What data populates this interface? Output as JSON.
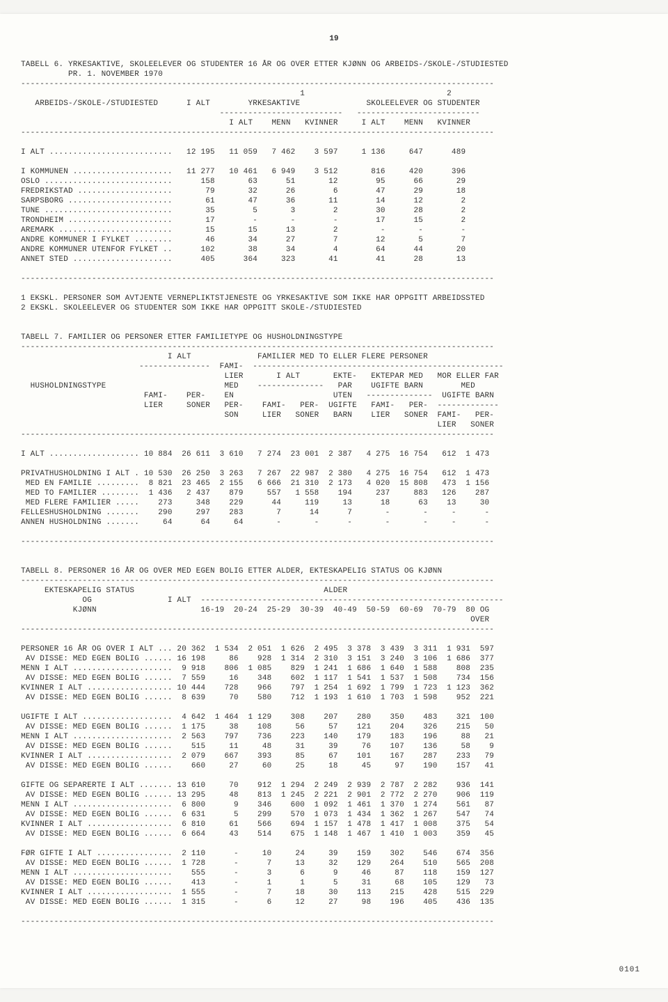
{
  "page_number": "19",
  "footer_code": "0101",
  "font": {
    "family": "Courier New, monospace",
    "size_pt": 8,
    "color": "#333333"
  },
  "colors": {
    "background": "#fdfdfa",
    "page_shadow": "#e0e0dc",
    "text": "#333333"
  },
  "table6": {
    "title": "TABELL 6. YRKESAKTIVE, SKOLEELEVER OG STUDENTER 16 ÅR OG OVER ETTER KJØNN OG ARBEIDS-/SKOLE-/STUDIESTED\n          PR. 1. NOVEMBER 1970",
    "group_headers": [
      "ARBEIDS-/SKOLE-/STUDIESTED",
      "I ALT",
      "YRKESAKTIVE",
      "SKOLEELEVER OG STUDENTER"
    ],
    "sup": [
      "",
      "",
      "1",
      "2"
    ],
    "sub_headers": [
      "",
      "",
      "I ALT",
      "MENN",
      "KVINNER",
      "I ALT",
      "MENN",
      "KVINNER"
    ],
    "rows": [
      [
        "I ALT ..........................",
        "12 195",
        "11 059",
        "7 462",
        "3 597",
        "1 136",
        "647",
        "489"
      ],
      [
        " ",
        "",
        "",
        "",
        "",
        "",
        "",
        ""
      ],
      [
        "I KOMMUNEN .....................",
        "11 277",
        "10 461",
        "6 949",
        "3 512",
        "816",
        "420",
        "396"
      ],
      [
        "OSLO ...........................",
        "158",
        "63",
        "51",
        "12",
        "95",
        "66",
        "29"
      ],
      [
        "FREDRIKSTAD ....................",
        "79",
        "32",
        "26",
        "6",
        "47",
        "29",
        "18"
      ],
      [
        "SARPSBORG ......................",
        "61",
        "47",
        "36",
        "11",
        "14",
        "12",
        "2"
      ],
      [
        "TUNE ...........................",
        "35",
        "5",
        "3",
        "2",
        "30",
        "28",
        "2"
      ],
      [
        "TRONDHEIM ......................",
        "17",
        "-",
        "-",
        "-",
        "17",
        "15",
        "2"
      ],
      [
        "AREMARK ........................",
        "15",
        "15",
        "13",
        "2",
        "-",
        "-",
        "-"
      ],
      [
        "ANDRE KOMMUNER I FYLKET ........",
        "46",
        "34",
        "27",
        "7",
        "12",
        "5",
        "7"
      ],
      [
        "ANDRE KOMMUNER UTENFOR FYLKET ..",
        "102",
        "38",
        "34",
        "4",
        "64",
        "44",
        "20"
      ],
      [
        "ANNET STED .....................",
        "405",
        "364",
        "323",
        "41",
        "41",
        "28",
        "13"
      ]
    ],
    "footnotes": [
      "1 EKSKL. PERSONER SOM AVTJENTE VERNEPLIKTSTJENESTE OG YRKESAKTIVE SOM IKKE HAR OPPGITT ARBEIDSSTED",
      "2 EKSKL. SKOLEELEVER OG STUDENTER SOM IKKE HAR OPPGITT SKOLE-/STUDIESTED"
    ]
  },
  "table7": {
    "title": "TABELL 7. FAMILIER OG PERSONER ETTER FAMILIETYPE OG HUSHOLDNINGSTYPE",
    "header_lines": [
      "                               I ALT              FAMILIER MED TO ELLER FLERE PERSONER",
      "                         ---------------  FAMI-  -----------------------------------------------------",
      "                                           LIER       I ALT       EKTE-   EKTEPAR MED   MOR ELLER FAR",
      "  HUSHOLDNINGSTYPE                         MED    --------------   PAR    UGIFTE BARN        MED",
      "                          FAMI-    PER-    EN                     UTEN   --------------  UGIFTE BARN",
      "                          LIER     SONER   PER-    FAMI-   PER-  UGIFTE   FAMI-   PER-  -------------",
      "                                           SON     LIER   SONER   BARN    LIER   SONER  FAMI-   PER-",
      "                                                                                        LIER   SONER"
    ],
    "rows": [
      [
        "I ALT ...................",
        "10 884",
        "26 611",
        "3 610",
        "7 274",
        "23 001",
        "2 387",
        "4 275",
        "16 754",
        "612",
        "1 473"
      ],
      [
        "",
        "",
        "",
        "",
        "",
        "",
        "",
        "",
        "",
        "",
        ""
      ],
      [
        "PRIVATHUSHOLDNING I ALT .",
        "10 530",
        "26 250",
        "3 263",
        "7 267",
        "22 987",
        "2 380",
        "4 275",
        "16 754",
        "612",
        "1 473"
      ],
      [
        " MED EN FAMILIE .........",
        "8 821",
        "23 465",
        "2 155",
        "6 666",
        "21 310",
        "2 173",
        "4 020",
        "15 808",
        "473",
        "1 156"
      ],
      [
        " MED TO FAMILIER ........",
        "1 436",
        "2 437",
        "879",
        "557",
        "1 558",
        "194",
        "237",
        "883",
        "126",
        "287"
      ],
      [
        " MED FLERE FAMILIER .....",
        "273",
        "348",
        "229",
        "44",
        "119",
        "13",
        "18",
        "63",
        "13",
        "30"
      ],
      [
        "FELLESHUSHOLDNING .......",
        "290",
        "297",
        "283",
        "7",
        "14",
        "7",
        "-",
        "-",
        "-",
        "-"
      ],
      [
        "ANNEN HUSHOLDNING .......",
        "64",
        "64",
        "64",
        "-",
        "-",
        "-",
        "-",
        "-",
        "-",
        "-"
      ]
    ]
  },
  "table8": {
    "title": "TABELL 8. PERSONER 16 ÅR OG OVER MED EGEN BOLIG ETTER ALDER, EKTESKAPELIG STATUS OG KJØNN",
    "header_lines": [
      "     EKTESKAPELIG STATUS                                        ALDER",
      "             OG                I ALT  ----------------------------------------------------------------",
      "           KJØNN                      16-19  20-24  25-29  30-39  40-49  50-59  60-69  70-79  80 OG",
      "                                                                                               OVER"
    ],
    "rows": [
      [
        "PERSONER 16 ÅR OG OVER I ALT ...",
        "20 362",
        "1 534",
        "2 051",
        "1 626",
        "2 495",
        "3 378",
        "3 439",
        "3 311",
        "1 931",
        "597"
      ],
      [
        " AV DISSE: MED EGEN BOLIG ......",
        "16 198",
        "86",
        "928",
        "1 314",
        "2 310",
        "3 151",
        "3 240",
        "3 106",
        "1 686",
        "377"
      ],
      [
        "MENN I ALT .....................",
        "9 918",
        "806",
        "1 085",
        "829",
        "1 241",
        "1 686",
        "1 640",
        "1 588",
        "808",
        "235"
      ],
      [
        " AV DISSE: MED EGEN BOLIG ......",
        "7 559",
        "16",
        "348",
        "602",
        "1 117",
        "1 541",
        "1 537",
        "1 508",
        "734",
        "156"
      ],
      [
        "KVINNER I ALT ..................",
        "10 444",
        "728",
        "966",
        "797",
        "1 254",
        "1 692",
        "1 799",
        "1 723",
        "1 123",
        "362"
      ],
      [
        " AV DISSE: MED EGEN BOLIG ......",
        "8 639",
        "70",
        "580",
        "712",
        "1 193",
        "1 610",
        "1 703",
        "1 598",
        "952",
        "221"
      ],
      [
        "",
        "",
        "",
        "",
        "",
        "",
        "",
        "",
        "",
        "",
        ""
      ],
      [
        "UGIFTE I ALT ...................",
        "4 642",
        "1 464",
        "1 129",
        "308",
        "207",
        "280",
        "350",
        "483",
        "321",
        "100"
      ],
      [
        " AV DISSE: MED EGEN BOLIG ......",
        "1 175",
        "38",
        "108",
        "56",
        "57",
        "121",
        "204",
        "326",
        "215",
        "50"
      ],
      [
        "MENN I ALT .....................",
        "2 563",
        "797",
        "736",
        "223",
        "140",
        "179",
        "183",
        "196",
        "88",
        "21"
      ],
      [
        " AV DISSE: MED EGEN BOLIG ......",
        "515",
        "11",
        "48",
        "31",
        "39",
        "76",
        "107",
        "136",
        "58",
        "9"
      ],
      [
        "KVINNER I ALT ..................",
        "2 079",
        "667",
        "393",
        "85",
        "67",
        "101",
        "167",
        "287",
        "233",
        "79"
      ],
      [
        " AV DISSE: MED EGEN BOLIG ......",
        "660",
        "27",
        "60",
        "25",
        "18",
        "45",
        "97",
        "190",
        "157",
        "41"
      ],
      [
        "",
        "",
        "",
        "",
        "",
        "",
        "",
        "",
        "",
        "",
        ""
      ],
      [
        "GIFTE OG SEPARERTE I ALT .......",
        "13 610",
        "70",
        "912",
        "1 294",
        "2 249",
        "2 939",
        "2 787",
        "2 282",
        "936",
        "141"
      ],
      [
        " AV DISSE: MED EGEN BOLIG ......",
        "13 295",
        "48",
        "813",
        "1 245",
        "2 221",
        "2 901",
        "2 772",
        "2 270",
        "906",
        "119"
      ],
      [
        "MENN I ALT .....................",
        "6 800",
        "9",
        "346",
        "600",
        "1 092",
        "1 461",
        "1 370",
        "1 274",
        "561",
        "87"
      ],
      [
        " AV DISSE: MED EGEN BOLIG ......",
        "6 631",
        "5",
        "299",
        "570",
        "1 073",
        "1 434",
        "1 362",
        "1 267",
        "547",
        "74"
      ],
      [
        "KVINNER I ALT ..................",
        "6 810",
        "61",
        "566",
        "694",
        "1 157",
        "1 478",
        "1 417",
        "1 008",
        "375",
        "54"
      ],
      [
        " AV DISSE: MED EGEN BOLIG ......",
        "6 664",
        "43",
        "514",
        "675",
        "1 148",
        "1 467",
        "1 410",
        "1 003",
        "359",
        "45"
      ],
      [
        "",
        "",
        "",
        "",
        "",
        "",
        "",
        "",
        "",
        "",
        ""
      ],
      [
        "FØR GIFTE I ALT ................",
        "2 110",
        "-",
        "10",
        "24",
        "39",
        "159",
        "302",
        "546",
        "674",
        "356"
      ],
      [
        " AV DISSE: MED EGEN BOLIG ......",
        "1 728",
        "-",
        "7",
        "13",
        "32",
        "129",
        "264",
        "510",
        "565",
        "208"
      ],
      [
        "MENN I ALT .....................",
        "555",
        "-",
        "3",
        "6",
        "9",
        "46",
        "87",
        "118",
        "159",
        "127"
      ],
      [
        " AV DISSE: MED EGEN BOLIG ......",
        "413",
        "-",
        "1",
        "1",
        "5",
        "31",
        "68",
        "105",
        "129",
        "73"
      ],
      [
        "KVINNER I ALT ..................",
        "1 555",
        "-",
        "7",
        "18",
        "30",
        "113",
        "215",
        "428",
        "515",
        "229"
      ],
      [
        " AV DISSE: MED EGEN BOLIG ......",
        "1 315",
        "-",
        "6",
        "12",
        "27",
        "98",
        "196",
        "405",
        "436",
        "135"
      ]
    ]
  }
}
